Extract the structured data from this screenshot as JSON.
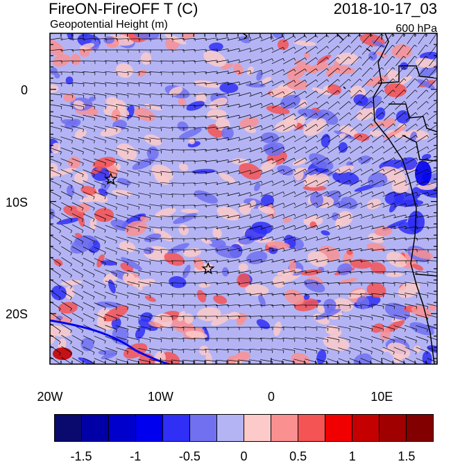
{
  "header": {
    "title_left": "FireON-FireOFF T (C)",
    "subtitle_left": "Geopotential Height (m)",
    "title_right": "2018-10-17_03",
    "subtitle_right": "600 hPa"
  },
  "axes": {
    "y_ticks": [
      {
        "value": 0,
        "label": "0"
      },
      {
        "value": -10,
        "label": "10S"
      },
      {
        "value": -20,
        "label": "20S"
      }
    ],
    "x_ticks": [
      {
        "value": -20,
        "label": "20W"
      },
      {
        "value": -10,
        "label": "10W"
      },
      {
        "value": 0,
        "label": "0"
      },
      {
        "value": 10,
        "label": "10E"
      }
    ],
    "lon_range": [
      -20,
      15
    ],
    "lat_range": [
      -24.5,
      5
    ]
  },
  "markers": [
    {
      "name": "star-marker-1",
      "lon": -14.5,
      "lat": -8.0
    },
    {
      "name": "star-marker-2",
      "lon": -5.7,
      "lat": -16.0
    }
  ],
  "colorbar": {
    "colors": [
      "#0a0a6e",
      "#0000a6",
      "#0000cc",
      "#0000ee",
      "#2f2ff6",
      "#7070f0",
      "#b4b4f5",
      "#fccac9",
      "#fa9090",
      "#f45454",
      "#f00000",
      "#c40000",
      "#a00000",
      "#820000"
    ],
    "labels": [
      "-1.5",
      "-1",
      "-0.5",
      "0",
      "0.5",
      "1",
      "1.5"
    ],
    "label_values": [
      -1.5,
      -1,
      -0.5,
      0,
      0.5,
      1,
      1.5
    ],
    "range": [
      -1.75,
      1.75
    ]
  },
  "colors": {
    "background_field": "#b4b4f5",
    "coastline": "#000000",
    "contour_line": "#0000ee"
  }
}
